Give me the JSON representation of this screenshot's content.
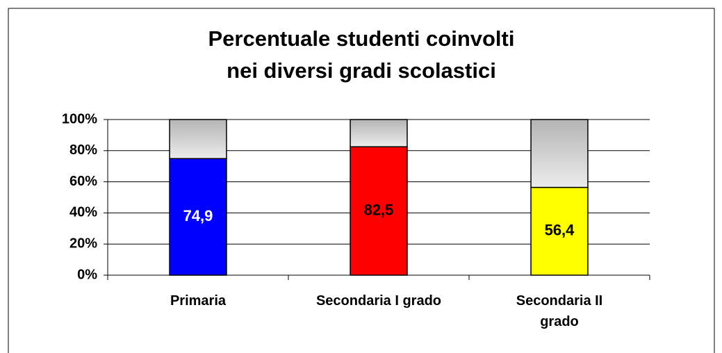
{
  "chart_data": {
    "type": "stacked_bar",
    "title": "Percentuale studenti coinvolti\nnei diversi gradi  scolastici",
    "categories": [
      "Primaria",
      "Secondaria I grado",
      "Secondaria II grado"
    ],
    "series": [
      {
        "colors": [
          "#0000ff",
          "#ff0000",
          "#ffff00"
        ],
        "values": [
          74.9,
          82.5,
          56.4
        ],
        "value_labels": [
          "74,9",
          "82,5",
          "56,4"
        ],
        "label_colors": [
          "#ffffff",
          "#000000",
          "#000000"
        ]
      },
      {
        "color": "#c8c8c8",
        "values": [
          25.1,
          17.5,
          43.6
        ]
      }
    ],
    "ylim": [
      0,
      100
    ],
    "yticks": [
      {
        "value": 0,
        "label": "0%"
      },
      {
        "value": 20,
        "label": "20%"
      },
      {
        "value": 40,
        "label": "40%"
      },
      {
        "value": 60,
        "label": "60%"
      },
      {
        "value": 80,
        "label": "80%"
      },
      {
        "value": 100,
        "label": "100%"
      }
    ],
    "grid": true
  }
}
